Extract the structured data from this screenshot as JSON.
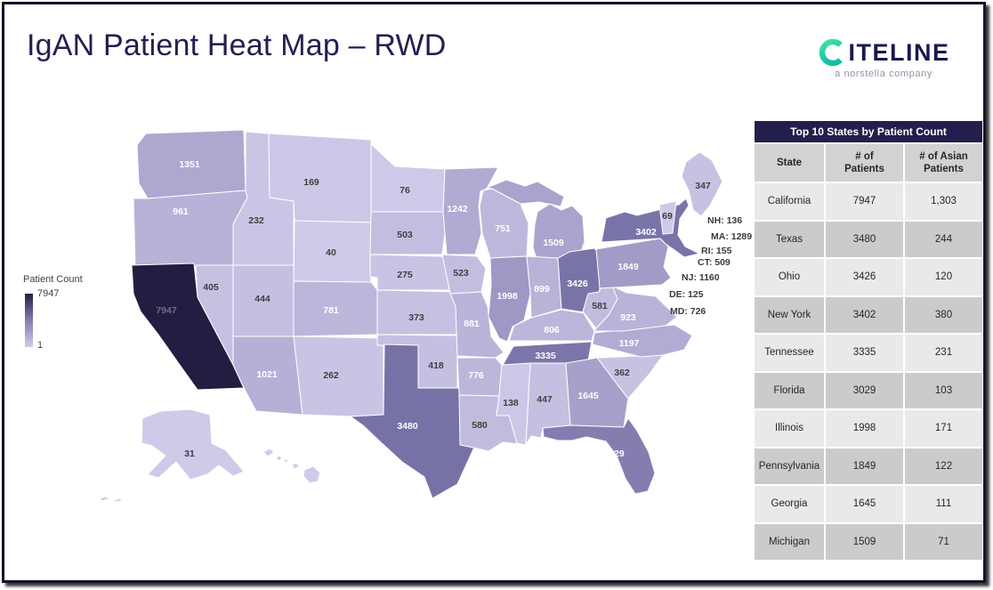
{
  "page": {
    "title": "IgAN Patient Heat Map – RWD"
  },
  "logo": {
    "wordmark": "CITELINE",
    "wordmark_rest": "ITELINE",
    "tagline": "a norstella company",
    "teal": "#3FE0A8",
    "teal_dark": "#14BFA0",
    "navy": "#161A4E"
  },
  "legend": {
    "title": "Patient Count",
    "max_label": "7947",
    "min_label": "1"
  },
  "colors": {
    "navy_bar": "#221F4E",
    "label_dark": "#3F3F3F",
    "label_light": "#FFFFFF",
    "ca_label": "#6E6B86",
    "no_data_fill": "#CFCBE9",
    "scale_stops": [
      {
        "t": 0.0,
        "c": "#CFCBE9"
      },
      {
        "t": 0.25,
        "c": "#9D98C4"
      },
      {
        "t": 0.45,
        "c": "#7570A4"
      },
      {
        "t": 1.0,
        "c": "#221E41"
      }
    ]
  },
  "chart_data": {
    "type": "choropleth",
    "title": "IgAN Patient Heat Map – RWD",
    "legend": {
      "label": "Patient Count",
      "min": 1,
      "max": 7947
    },
    "states": [
      {
        "abbr": "WA",
        "value": 1351
      },
      {
        "abbr": "OR",
        "value": 961
      },
      {
        "abbr": "CA",
        "value": 7947
      },
      {
        "abbr": "NV",
        "value": 405
      },
      {
        "abbr": "ID",
        "value": 232
      },
      {
        "abbr": "MT",
        "value": 169
      },
      {
        "abbr": "WY",
        "value": 40
      },
      {
        "abbr": "UT",
        "value": 444
      },
      {
        "abbr": "CO",
        "value": 781
      },
      {
        "abbr": "AZ",
        "value": 1021
      },
      {
        "abbr": "NM",
        "value": 262
      },
      {
        "abbr": "ND",
        "value": 76
      },
      {
        "abbr": "SD",
        "value": 503
      },
      {
        "abbr": "NE",
        "value": 275
      },
      {
        "abbr": "KS",
        "value": 373
      },
      {
        "abbr": "OK",
        "value": 418
      },
      {
        "abbr": "TX",
        "value": 3480
      },
      {
        "abbr": "MN",
        "value": 1242
      },
      {
        "abbr": "IA",
        "value": 523
      },
      {
        "abbr": "MO",
        "value": 881
      },
      {
        "abbr": "AR",
        "value": 776
      },
      {
        "abbr": "LA",
        "value": 580
      },
      {
        "abbr": "WI",
        "value": 751
      },
      {
        "abbr": "IL",
        "value": 1998
      },
      {
        "abbr": "MI",
        "value": 1509
      },
      {
        "abbr": "IN",
        "value": 899
      },
      {
        "abbr": "OH",
        "value": 3426
      },
      {
        "abbr": "KY",
        "value": 806
      },
      {
        "abbr": "TN",
        "value": 3335
      },
      {
        "abbr": "MS",
        "value": 138
      },
      {
        "abbr": "AL",
        "value": 447
      },
      {
        "abbr": "GA",
        "value": 1645
      },
      {
        "abbr": "FL",
        "value": 3029
      },
      {
        "abbr": "SC",
        "value": 362
      },
      {
        "abbr": "NC",
        "value": 1197
      },
      {
        "abbr": "VA",
        "value": 923
      },
      {
        "abbr": "WV",
        "value": 581
      },
      {
        "abbr": "PA",
        "value": 1849
      },
      {
        "abbr": "NY",
        "value": 3402
      },
      {
        "abbr": "VT",
        "value": 69
      },
      {
        "abbr": "ME",
        "value": 347
      },
      {
        "abbr": "AK",
        "value": 31
      },
      {
        "abbr": "HI",
        "value": null
      }
    ],
    "callouts": [
      {
        "abbr": "NH",
        "value": 136
      },
      {
        "abbr": "MA",
        "value": 1289
      },
      {
        "abbr": "RI",
        "value": 155
      },
      {
        "abbr": "CT",
        "value": 509
      },
      {
        "abbr": "NJ",
        "value": 1160
      },
      {
        "abbr": "DE",
        "value": 125
      },
      {
        "abbr": "MD",
        "value": 726
      }
    ]
  },
  "table": {
    "title": "Top 10 States by Patient Count",
    "columns": [
      "State",
      "# of\nPatients",
      "# of Asian\nPatients"
    ],
    "rows": [
      [
        "California",
        "7947",
        "1,303"
      ],
      [
        "Texas",
        "3480",
        "244"
      ],
      [
        "Ohio",
        "3426",
        "120"
      ],
      [
        "New York",
        "3402",
        "380"
      ],
      [
        "Tennessee",
        "3335",
        "231"
      ],
      [
        "Florida",
        "3029",
        "103"
      ],
      [
        "Illinois",
        "1998",
        "171"
      ],
      [
        "Pennsylvania",
        "1849",
        "122"
      ],
      [
        "Georgia",
        "1645",
        "111"
      ],
      [
        "Michigan",
        "1509",
        "71"
      ]
    ]
  }
}
